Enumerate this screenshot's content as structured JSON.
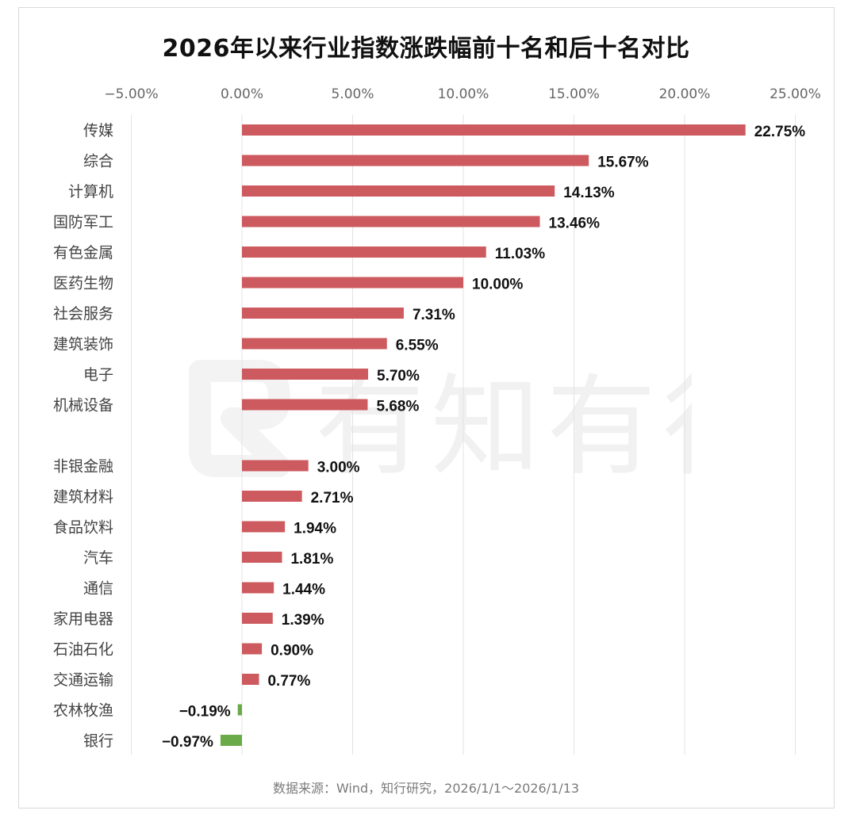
{
  "title": "2026年以来行业指数涨跌幅前十名和后十名对比",
  "source": "数据来源：Wind，知行研究，2026/1/1～2026/1/13",
  "watermark_text": "有知有行",
  "chart_data": {
    "type": "bar",
    "orientation": "horizontal",
    "title": "2026年以来行业指数涨跌幅前十名和后十名对比",
    "xlabel": "",
    "ylabel": "",
    "xlim": [
      -5,
      25
    ],
    "x_ticks": [
      -5,
      0,
      5,
      10,
      15,
      20,
      25
    ],
    "x_tick_labels": [
      "−5.00%",
      "0.00%",
      "5.00%",
      "10.00%",
      "15.00%",
      "20.00%",
      "25.00%"
    ],
    "grid": "vertical",
    "groups": [
      {
        "name": "top10",
        "categories": [
          "传媒",
          "综合",
          "计算机",
          "国防军工",
          "有色金属",
          "医药生物",
          "社会服务",
          "建筑装饰",
          "电子",
          "机械设备"
        ],
        "values": [
          22.75,
          15.67,
          14.13,
          13.46,
          11.03,
          10.0,
          7.31,
          6.55,
          5.7,
          5.68
        ],
        "labels": [
          "22.75%",
          "15.67%",
          "14.13%",
          "13.46%",
          "11.03%",
          "10.00%",
          "7.31%",
          "6.55%",
          "5.70%",
          "5.68%"
        ]
      },
      {
        "name": "bottom10",
        "categories": [
          "非银金融",
          "建筑材料",
          "食品饮料",
          "汽车",
          "通信",
          "家用电器",
          "石油石化",
          "交通运输",
          "农林牧渔",
          "银行"
        ],
        "values": [
          3.0,
          2.71,
          1.94,
          1.81,
          1.44,
          1.39,
          0.9,
          0.77,
          -0.19,
          -0.97
        ],
        "labels": [
          "3.00%",
          "2.71%",
          "1.94%",
          "1.81%",
          "1.44%",
          "1.39%",
          "0.90%",
          "0.77%",
          "−0.19%",
          "−0.97%"
        ]
      }
    ],
    "colors": {
      "positive": "#cd5a5e",
      "negative": "#6aaa48",
      "grid": "#e3e3e3",
      "tick_text": "#666666",
      "category_text": "#444444",
      "label_text": "#111111"
    }
  }
}
